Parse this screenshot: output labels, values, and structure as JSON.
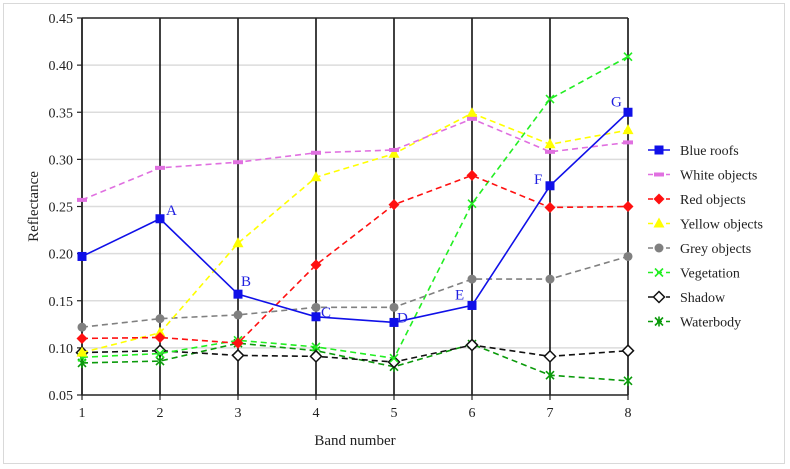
{
  "chart_data": {
    "type": "line",
    "title": "",
    "xlabel": "Band number",
    "ylabel": "Reflectance",
    "x": [
      1,
      2,
      3,
      4,
      5,
      6,
      7,
      8
    ],
    "x_tick_labels": [
      "1",
      "2",
      "3",
      "4",
      "5",
      "6",
      "7",
      "8"
    ],
    "y_tick_labels": [
      "0.05",
      "0.10",
      "0.15",
      "0.20",
      "0.25",
      "0.30",
      "0.35",
      "0.40",
      "0.45"
    ],
    "ylim": [
      0.05,
      0.45
    ],
    "xlim": [
      1,
      8
    ],
    "grid": {
      "horizontal": true,
      "vertical_major": true
    },
    "legend_position": "right",
    "series": [
      {
        "name": "Blue roofs",
        "color": "#1010e8",
        "line": "solid",
        "marker": "square",
        "values": [
          0.197,
          0.237,
          0.157,
          0.133,
          0.127,
          0.145,
          0.272,
          0.35
        ]
      },
      {
        "name": "White objects",
        "color": "#e070e0",
        "line": "dashed",
        "marker": "dash",
        "values": [
          0.257,
          0.291,
          0.297,
          0.307,
          0.31,
          0.343,
          0.308,
          0.318
        ]
      },
      {
        "name": "Red  objects",
        "color": "#ff1010",
        "line": "dashed",
        "marker": "diamond",
        "values": [
          0.11,
          0.111,
          0.105,
          0.188,
          0.252,
          0.283,
          0.249,
          0.25
        ]
      },
      {
        "name": "Yellow objects",
        "color": "#ffff00",
        "line": "dashed",
        "marker": "triangle",
        "values": [
          0.095,
          0.116,
          0.211,
          0.281,
          0.306,
          0.349,
          0.316,
          0.331
        ]
      },
      {
        "name": "Grey objects",
        "color": "#808080",
        "line": "dashed",
        "marker": "circle",
        "values": [
          0.122,
          0.131,
          0.135,
          0.143,
          0.143,
          0.173,
          0.173,
          0.197
        ]
      },
      {
        "name": "Vegetation",
        "color": "#22ee22",
        "line": "dashed",
        "marker": "x",
        "values": [
          0.09,
          0.094,
          0.108,
          0.101,
          0.089,
          0.253,
          0.364,
          0.409
        ]
      },
      {
        "name": "Shadow",
        "color": "#111111",
        "line": "dashed",
        "marker": "open-diamond",
        "values": [
          0.095,
          0.097,
          0.092,
          0.091,
          0.085,
          0.103,
          0.091,
          0.097
        ]
      },
      {
        "name": "Waterbody",
        "color": "#0a9a0a",
        "line": "dashed",
        "marker": "star",
        "values": [
          0.084,
          0.086,
          0.105,
          0.097,
          0.08,
          0.104,
          0.071,
          0.065
        ]
      }
    ],
    "annotations": [
      {
        "text": "A",
        "series": "Blue roofs",
        "x": 2
      },
      {
        "text": "B",
        "series": "Blue roofs",
        "x": 3
      },
      {
        "text": "C",
        "series": "Blue roofs",
        "x": 4
      },
      {
        "text": "D",
        "series": "Blue roofs",
        "x": 5
      },
      {
        "text": "E",
        "series": "Blue roofs",
        "x": 6
      },
      {
        "text": "F",
        "series": "Blue roofs",
        "x": 7
      },
      {
        "text": "G",
        "series": "Blue roofs",
        "x": 8
      }
    ]
  }
}
